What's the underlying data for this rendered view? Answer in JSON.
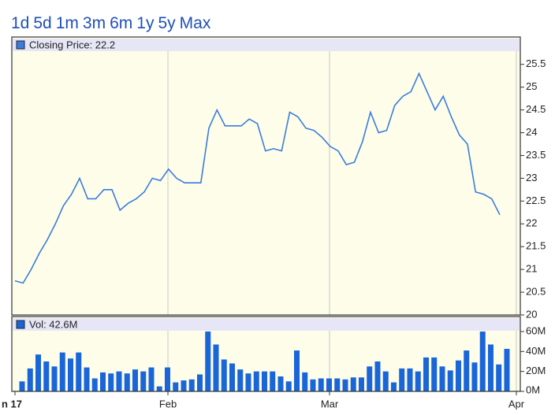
{
  "range_buttons": [
    "1d",
    "5d",
    "1m",
    "3m",
    "6m",
    "1y",
    "5y",
    "Max"
  ],
  "chart_data": [
    {
      "type": "line",
      "series": [
        {
          "name": "Closing Price: 22.2",
          "color": "#3a7ddc",
          "values": [
            20.75,
            20.7,
            21.0,
            21.35,
            21.65,
            22.0,
            22.4,
            22.65,
            23.0,
            22.55,
            22.55,
            22.75,
            22.75,
            22.3,
            22.45,
            22.55,
            22.7,
            23.0,
            22.95,
            23.2,
            23.0,
            22.9,
            22.9,
            22.9,
            24.1,
            24.5,
            24.15,
            24.15,
            24.15,
            24.3,
            24.2,
            23.6,
            23.65,
            23.6,
            24.45,
            24.35,
            24.1,
            24.05,
            23.9,
            23.7,
            23.6,
            23.3,
            23.35,
            23.8,
            24.45,
            24.0,
            24.05,
            24.6,
            24.8,
            24.9,
            25.3,
            24.9,
            24.5,
            24.8,
            24.35,
            23.95,
            23.75,
            22.7,
            22.65,
            22.55,
            22.2
          ]
        }
      ],
      "xlim": [
        -0.39,
        62.54
      ],
      "ylim": [
        20,
        26.1
      ],
      "yticks": [
        20,
        20.5,
        21,
        21.5,
        22,
        22.5,
        23,
        23.5,
        24,
        24.5,
        25,
        25.5
      ],
      "grid": true
    },
    {
      "type": "bar",
      "series": [
        {
          "name": "Vol: 42.6M",
          "color": "#1a66d9",
          "values": [
            10,
            23,
            37,
            30,
            25,
            39,
            33,
            39,
            24,
            13,
            19,
            18,
            20,
            18,
            22,
            20,
            24,
            5,
            24,
            9,
            11,
            12,
            17,
            60,
            47,
            32,
            28,
            22,
            18,
            20,
            20,
            20,
            15,
            10,
            41,
            19,
            12,
            13,
            13,
            13,
            12,
            14,
            14,
            25,
            30,
            20,
            9,
            23,
            23,
            20,
            34,
            34,
            25,
            21,
            31,
            41,
            29,
            60,
            47,
            27,
            42.6
          ]
        }
      ],
      "xlim": [
        -0.39,
        62.54
      ],
      "xticks": [
        {
          "value": 0,
          "label": "n 17"
        },
        {
          "value": 18.93,
          "label": "Feb"
        },
        {
          "value": 38.93,
          "label": "Mar"
        },
        {
          "value": 62.05,
          "label": "Apr"
        }
      ],
      "ylim": [
        0,
        75
      ],
      "yticks": [
        {
          "value": 0,
          "label": "0M"
        },
        {
          "value": 20,
          "label": "20M"
        },
        {
          "value": 40,
          "label": "40M"
        },
        {
          "value": 60,
          "label": "60M"
        }
      ],
      "grid": true
    }
  ]
}
